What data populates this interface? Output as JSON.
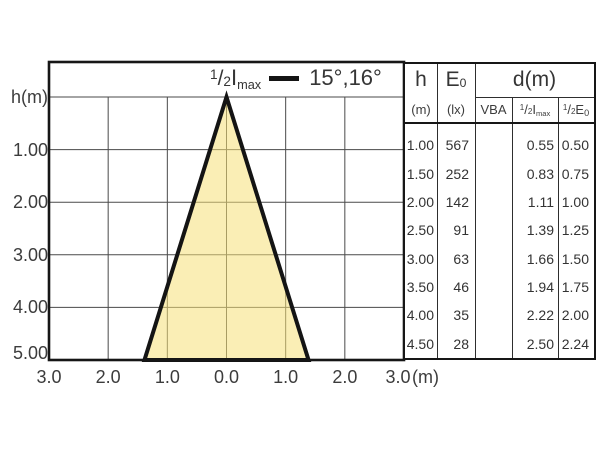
{
  "chart_data": {
    "type": "beam-cone-diagram",
    "legend": {
      "numerator": "1",
      "denominator": "2",
      "quantity": "I",
      "quantity_sub": "max",
      "angles": "15°,16°"
    },
    "y_axis": {
      "label": "h(m)",
      "ticks": [
        "1.00",
        "2.00",
        "3.00",
        "4.00",
        "5.00"
      ],
      "range_m": [
        0,
        5
      ]
    },
    "x_axis": {
      "ticks": [
        "3.0",
        "2.0",
        "1.0",
        "0.0",
        "1.0",
        "2.0",
        "3.0"
      ],
      "unit": "(m)",
      "range_m": [
        -3,
        3
      ]
    },
    "beam_half_angles_deg": [
      15,
      16
    ],
    "cone": {
      "apex_h_m": 0,
      "base_h_m": 5,
      "fill": "#F5E078",
      "fill_opacity": 0.55,
      "outline": "#141414"
    },
    "grid": true
  },
  "table": {
    "headers": {
      "h": {
        "title": "h",
        "unit": "(m)"
      },
      "e0": {
        "title": "E",
        "title_sub": "0",
        "unit": "(lx)"
      },
      "d": {
        "title": "d(m)"
      },
      "sub": {
        "vba": "VBA",
        "half_imax": {
          "numerator": "1",
          "denominator": "2",
          "quantity": "I",
          "quantity_sub": "max"
        },
        "half_e": {
          "numerator": "1",
          "denominator": "2",
          "quantity": "E",
          "quantity_sub": "0"
        }
      }
    },
    "rows": [
      {
        "h": "1.00",
        "e0": "567",
        "vba": "",
        "half_imax": "0.55",
        "half_e": "0.50"
      },
      {
        "h": "1.50",
        "e0": "252",
        "vba": "",
        "half_imax": "0.83",
        "half_e": "0.75"
      },
      {
        "h": "2.00",
        "e0": "142",
        "vba": "",
        "half_imax": "1.11",
        "half_e": "1.00"
      },
      {
        "h": "2.50",
        "e0": "91",
        "vba": "",
        "half_imax": "1.39",
        "half_e": "1.25"
      },
      {
        "h": "3.00",
        "e0": "63",
        "vba": "",
        "half_imax": "1.66",
        "half_e": "1.50"
      },
      {
        "h": "3.50",
        "e0": "46",
        "vba": "",
        "half_imax": "1.94",
        "half_e": "1.75"
      },
      {
        "h": "4.00",
        "e0": "35",
        "vba": "",
        "half_imax": "2.22",
        "half_e": "2.00"
      },
      {
        "h": "4.50",
        "e0": "28",
        "vba": "",
        "half_imax": "2.50",
        "half_e": "2.24"
      }
    ]
  },
  "colors": {
    "grid_line": "#4a4a4a",
    "border": "#161616",
    "text": "#3c3c3c"
  }
}
